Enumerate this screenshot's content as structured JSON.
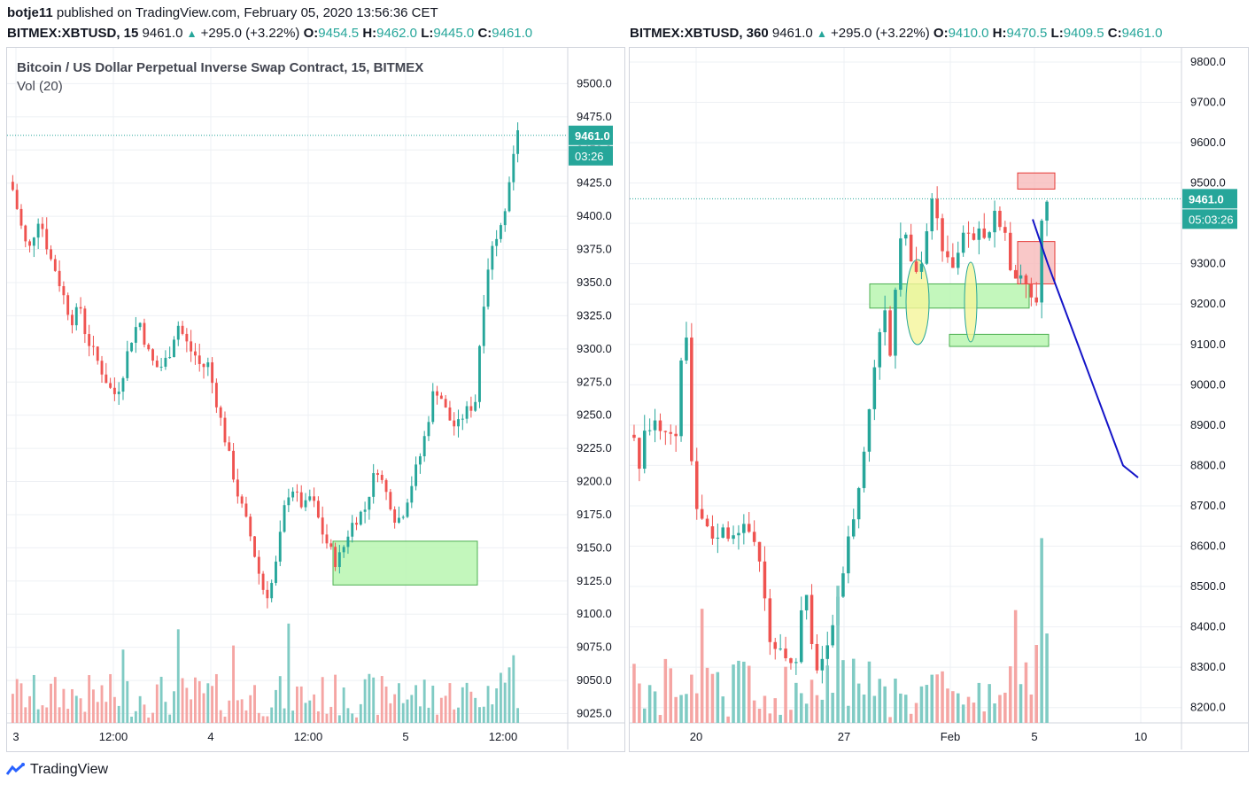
{
  "header": {
    "author": "botje11",
    "published": "published on TradingView.com, February 05, 2020 13:56:36 CET"
  },
  "left": {
    "symbol": "BITMEX:XBTUSD, 15",
    "price": "9461.0",
    "change": "+295.0 (+3.22%)",
    "o_label": "O:",
    "o": "9454.5",
    "h_label": "H:",
    "h": "9462.0",
    "l_label": "L:",
    "l": "9445.0",
    "c_label": "C:",
    "c": "9461.0",
    "title": "Bitcoin / US Dollar Perpetual Inverse Swap Contract, 15, BITMEX",
    "indicator": "Vol (20)",
    "last_price": "9461.0",
    "countdown": "03:26"
  },
  "right": {
    "symbol": "BITMEX:XBTUSD, 360",
    "price": "9461.0",
    "change": "+295.0 (+3.22%)",
    "o_label": "O:",
    "o": "9410.0",
    "h_label": "H:",
    "h": "9470.5",
    "l_label": "L:",
    "l": "9409.5",
    "c_label": "C:",
    "c": "9461.0",
    "last_price": "9461.0",
    "countdown": "05:03:26"
  },
  "footer": {
    "brand": "TradingView"
  },
  "colors": {
    "up": "#26a69a",
    "down": "#ef5350",
    "upVol": "#80cbc4",
    "downVol": "#f5a5a3",
    "zoneGreen": "#b9f6b0",
    "zoneRed": "#f7b6b6",
    "path": "#1515c8",
    "ellipse": "#f5f59a"
  },
  "chart_data": [
    {
      "type": "candlestick",
      "title": "Bitcoin / US Dollar Perpetual Inverse Swap Contract, 15, BITMEX",
      "interval": "15",
      "y_ticks": [
        9500.0,
        9475.0,
        9450.0,
        9425.0,
        9400.0,
        9375.0,
        9350.0,
        9325.0,
        9300.0,
        9275.0,
        9250.0,
        9225.0,
        9200.0,
        9175.0,
        9150.0,
        9125.0,
        9100.0,
        9075.0,
        9050.0,
        9025.0
      ],
      "y_tick_labels": [
        "9500.0",
        "9475.0",
        "9450.0",
        "9425.0",
        "9400.0",
        "9375.0",
        "9350.0",
        "9325.0",
        "9300.0",
        "9275.0",
        "9250.0",
        "9225.0",
        "9200.0",
        "9175.0",
        "9150.0",
        "9125.0",
        "9100.0",
        "9075.0",
        "9050.0",
        "9025.0"
      ],
      "ylim": [
        9018,
        9527
      ],
      "x_ticks": [
        "3",
        "12:00",
        "4",
        "12:00",
        "5",
        "12:00"
      ],
      "close_path": [
        9420,
        9400,
        9380,
        9375,
        9400,
        9390,
        9370,
        9360,
        9345,
        9330,
        9320,
        9335,
        9310,
        9300,
        9290,
        9280,
        9270,
        9265,
        9280,
        9300,
        9315,
        9320,
        9300,
        9290,
        9285,
        9290,
        9300,
        9320,
        9310,
        9300,
        9295,
        9285,
        9290,
        9270,
        9250,
        9230,
        9210,
        9190,
        9175,
        9160,
        9140,
        9120,
        9115,
        9130,
        9160,
        9190,
        9195,
        9185,
        9180,
        9190,
        9175,
        9160,
        9150,
        9140,
        9145,
        9160,
        9170,
        9175,
        9180,
        9200,
        9210,
        9195,
        9185,
        9170,
        9175,
        9190,
        9205,
        9220,
        9240,
        9265,
        9270,
        9255,
        9245,
        9240,
        9250,
        9255,
        9260,
        9320,
        9360,
        9380,
        9395,
        9410,
        9440,
        9461
      ],
      "volume_zone": {
        "from": 9122,
        "to": 9155
      },
      "last_price": 9461.0
    },
    {
      "type": "candlestick",
      "interval": "360",
      "y_ticks": [
        9800.0,
        9700.0,
        9600.0,
        9500.0,
        9400.0,
        9300.0,
        9200.0,
        9100.0,
        9000.0,
        8900.0,
        8800.0,
        8700.0,
        8600.0,
        8500.0,
        8400.0,
        8300.0,
        8200.0
      ],
      "y_tick_labels": [
        "9800.0",
        "9700.0",
        "9600.0",
        "9500.0",
        "9400.0",
        "9300.0",
        "9200.0",
        "9100.0",
        "9000.0",
        "8900.0",
        "8800.0",
        "8700.0",
        "8600.0",
        "8500.0",
        "8400.0",
        "8300.0",
        "8200.0"
      ],
      "ylim": [
        8162,
        9835
      ],
      "x_ticks": [
        "20",
        "27",
        "Feb",
        "5",
        "10"
      ],
      "close_path": [
        8870,
        8800,
        8880,
        8890,
        8920,
        8870,
        8900,
        8880,
        8870,
        9100,
        9110,
        8690,
        8680,
        8660,
        8630,
        8620,
        8640,
        8640,
        8620,
        8650,
        8640,
        8650,
        8620,
        8600,
        8520,
        8380,
        8320,
        8360,
        8340,
        8310,
        8300,
        8420,
        8490,
        8360,
        8300,
        8320,
        8340,
        8390,
        8460,
        8540,
        8620,
        8680,
        8750,
        8850,
        8950,
        9070,
        9150,
        9210,
        9040,
        9310,
        9400,
        9340,
        9300,
        9270,
        9330,
        9420,
        9480,
        9340,
        9310,
        9310,
        9290,
        9360,
        9370,
        9350,
        9400,
        9390,
        9350,
        9430,
        9380,
        9380,
        9300,
        9270,
        9260,
        9240,
        9230,
        9180,
        9410,
        9461
      ],
      "zones": [
        {
          "type": "green",
          "from": 9190,
          "to": 9250
        },
        {
          "type": "green",
          "from": 9095,
          "to": 9125
        },
        {
          "type": "red",
          "from": 9250,
          "to": 9355
        },
        {
          "type": "red",
          "from": 9485,
          "to": 9525
        }
      ],
      "projection": [
        9410,
        9300,
        9200,
        9100,
        9000,
        8900,
        8800,
        8770
      ],
      "last_price": 9461.0
    }
  ]
}
